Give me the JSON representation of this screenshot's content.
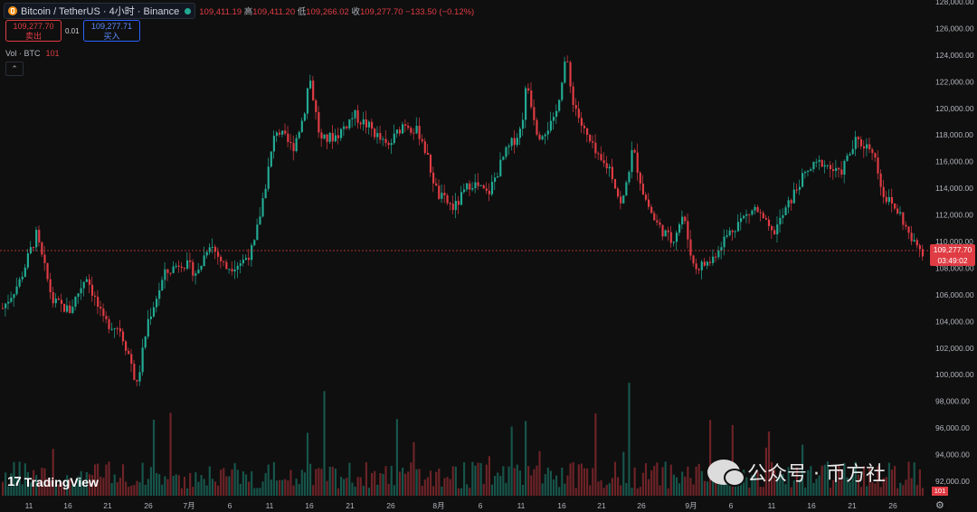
{
  "header": {
    "symbol": "Bitcoin / TetherUS · 4小时 · Binance",
    "open_label": "",
    "open": "109,411.19",
    "high_label": "高",
    "high": "109,411.20",
    "low_label": "低",
    "low": "109,266.02",
    "close_label": "收",
    "close": "109,277.70",
    "change": "−133.50 (−0.12%)"
  },
  "trade": {
    "sell_price": "109,277.70",
    "sell_label": "卖出",
    "spread": "0.01",
    "buy_price": "109,277.71",
    "buy_label": "买入"
  },
  "volume": {
    "label": "Vol · BTC",
    "value": "101"
  },
  "price_tag": {
    "price": "109,277.70",
    "countdown": "03:49:02"
  },
  "volume_tag": "101",
  "logo_text": "TradingView",
  "watermark": "公众号 · 币方社",
  "colors": {
    "up": "#22ab94",
    "down": "#e03c44",
    "background": "#0f0f0f"
  },
  "chart_data": {
    "type": "candlestick",
    "series_summary": "BTC/USDT 4h candles",
    "y_ticks": [
      "128,000.00",
      "126,000.00",
      "124,000.00",
      "122,000.00",
      "120,000.00",
      "118,000.00",
      "116,000.00",
      "114,000.00",
      "112,000.00",
      "110,000.00",
      "108,000.00",
      "106,000.00",
      "104,000.00",
      "102,000.00",
      "100,000.00",
      "98,000.00",
      "96,000.00",
      "94,000.00",
      "92,000.00"
    ],
    "ylim": [
      92000,
      128000
    ],
    "x_ticks": [
      "11",
      "16",
      "21",
      "26",
      "7月",
      "6",
      "11",
      "16",
      "21",
      "26",
      "8月",
      "6",
      "11",
      "16",
      "21",
      "26",
      "9月",
      "6",
      "11",
      "16",
      "21",
      "26"
    ],
    "price_path": [
      [
        0,
        105000
      ],
      [
        3,
        107000
      ],
      [
        6,
        110500
      ],
      [
        9,
        105500
      ],
      [
        12,
        104800
      ],
      [
        15,
        107500
      ],
      [
        18,
        104000
      ],
      [
        21,
        103500
      ],
      [
        23,
        101000
      ],
      [
        24,
        99000
      ],
      [
        26,
        104000
      ],
      [
        29,
        107500
      ],
      [
        32,
        108500
      ],
      [
        35,
        107600
      ],
      [
        37,
        110000
      ],
      [
        40,
        108000
      ],
      [
        43,
        108500
      ],
      [
        45,
        109500
      ],
      [
        47,
        114000
      ],
      [
        49,
        118500
      ],
      [
        52,
        117000
      ],
      [
        54,
        119500
      ],
      [
        55,
        122500
      ],
      [
        57,
        117500
      ],
      [
        60,
        118000
      ],
      [
        63,
        119500
      ],
      [
        66,
        118500
      ],
      [
        69,
        117000
      ],
      [
        72,
        119000
      ],
      [
        75,
        118000
      ],
      [
        78,
        113500
      ],
      [
        81,
        112500
      ],
      [
        84,
        114500
      ],
      [
        87,
        113500
      ],
      [
        90,
        116500
      ],
      [
        93,
        118500
      ],
      [
        94,
        122000
      ],
      [
        96,
        118000
      ],
      [
        99,
        119000
      ],
      [
        101,
        124000
      ],
      [
        102,
        121000
      ],
      [
        104,
        118500
      ],
      [
        107,
        116000
      ],
      [
        109,
        115500
      ],
      [
        111,
        112500
      ],
      [
        113,
        117000
      ],
      [
        115,
        113500
      ],
      [
        117,
        111500
      ],
      [
        120,
        110000
      ],
      [
        122,
        112000
      ],
      [
        124,
        108000
      ],
      [
        127,
        108500
      ],
      [
        129,
        110000
      ],
      [
        132,
        111500
      ],
      [
        135,
        112500
      ],
      [
        138,
        110500
      ],
      [
        140,
        112000
      ],
      [
        143,
        114500
      ],
      [
        145,
        115500
      ],
      [
        147,
        116000
      ],
      [
        150,
        115000
      ],
      [
        153,
        117500
      ],
      [
        156,
        117000
      ],
      [
        158,
        113500
      ],
      [
        161,
        112000
      ],
      [
        163,
        110000
      ],
      [
        165,
        109300
      ]
    ],
    "volume_max_approx": 420
  }
}
